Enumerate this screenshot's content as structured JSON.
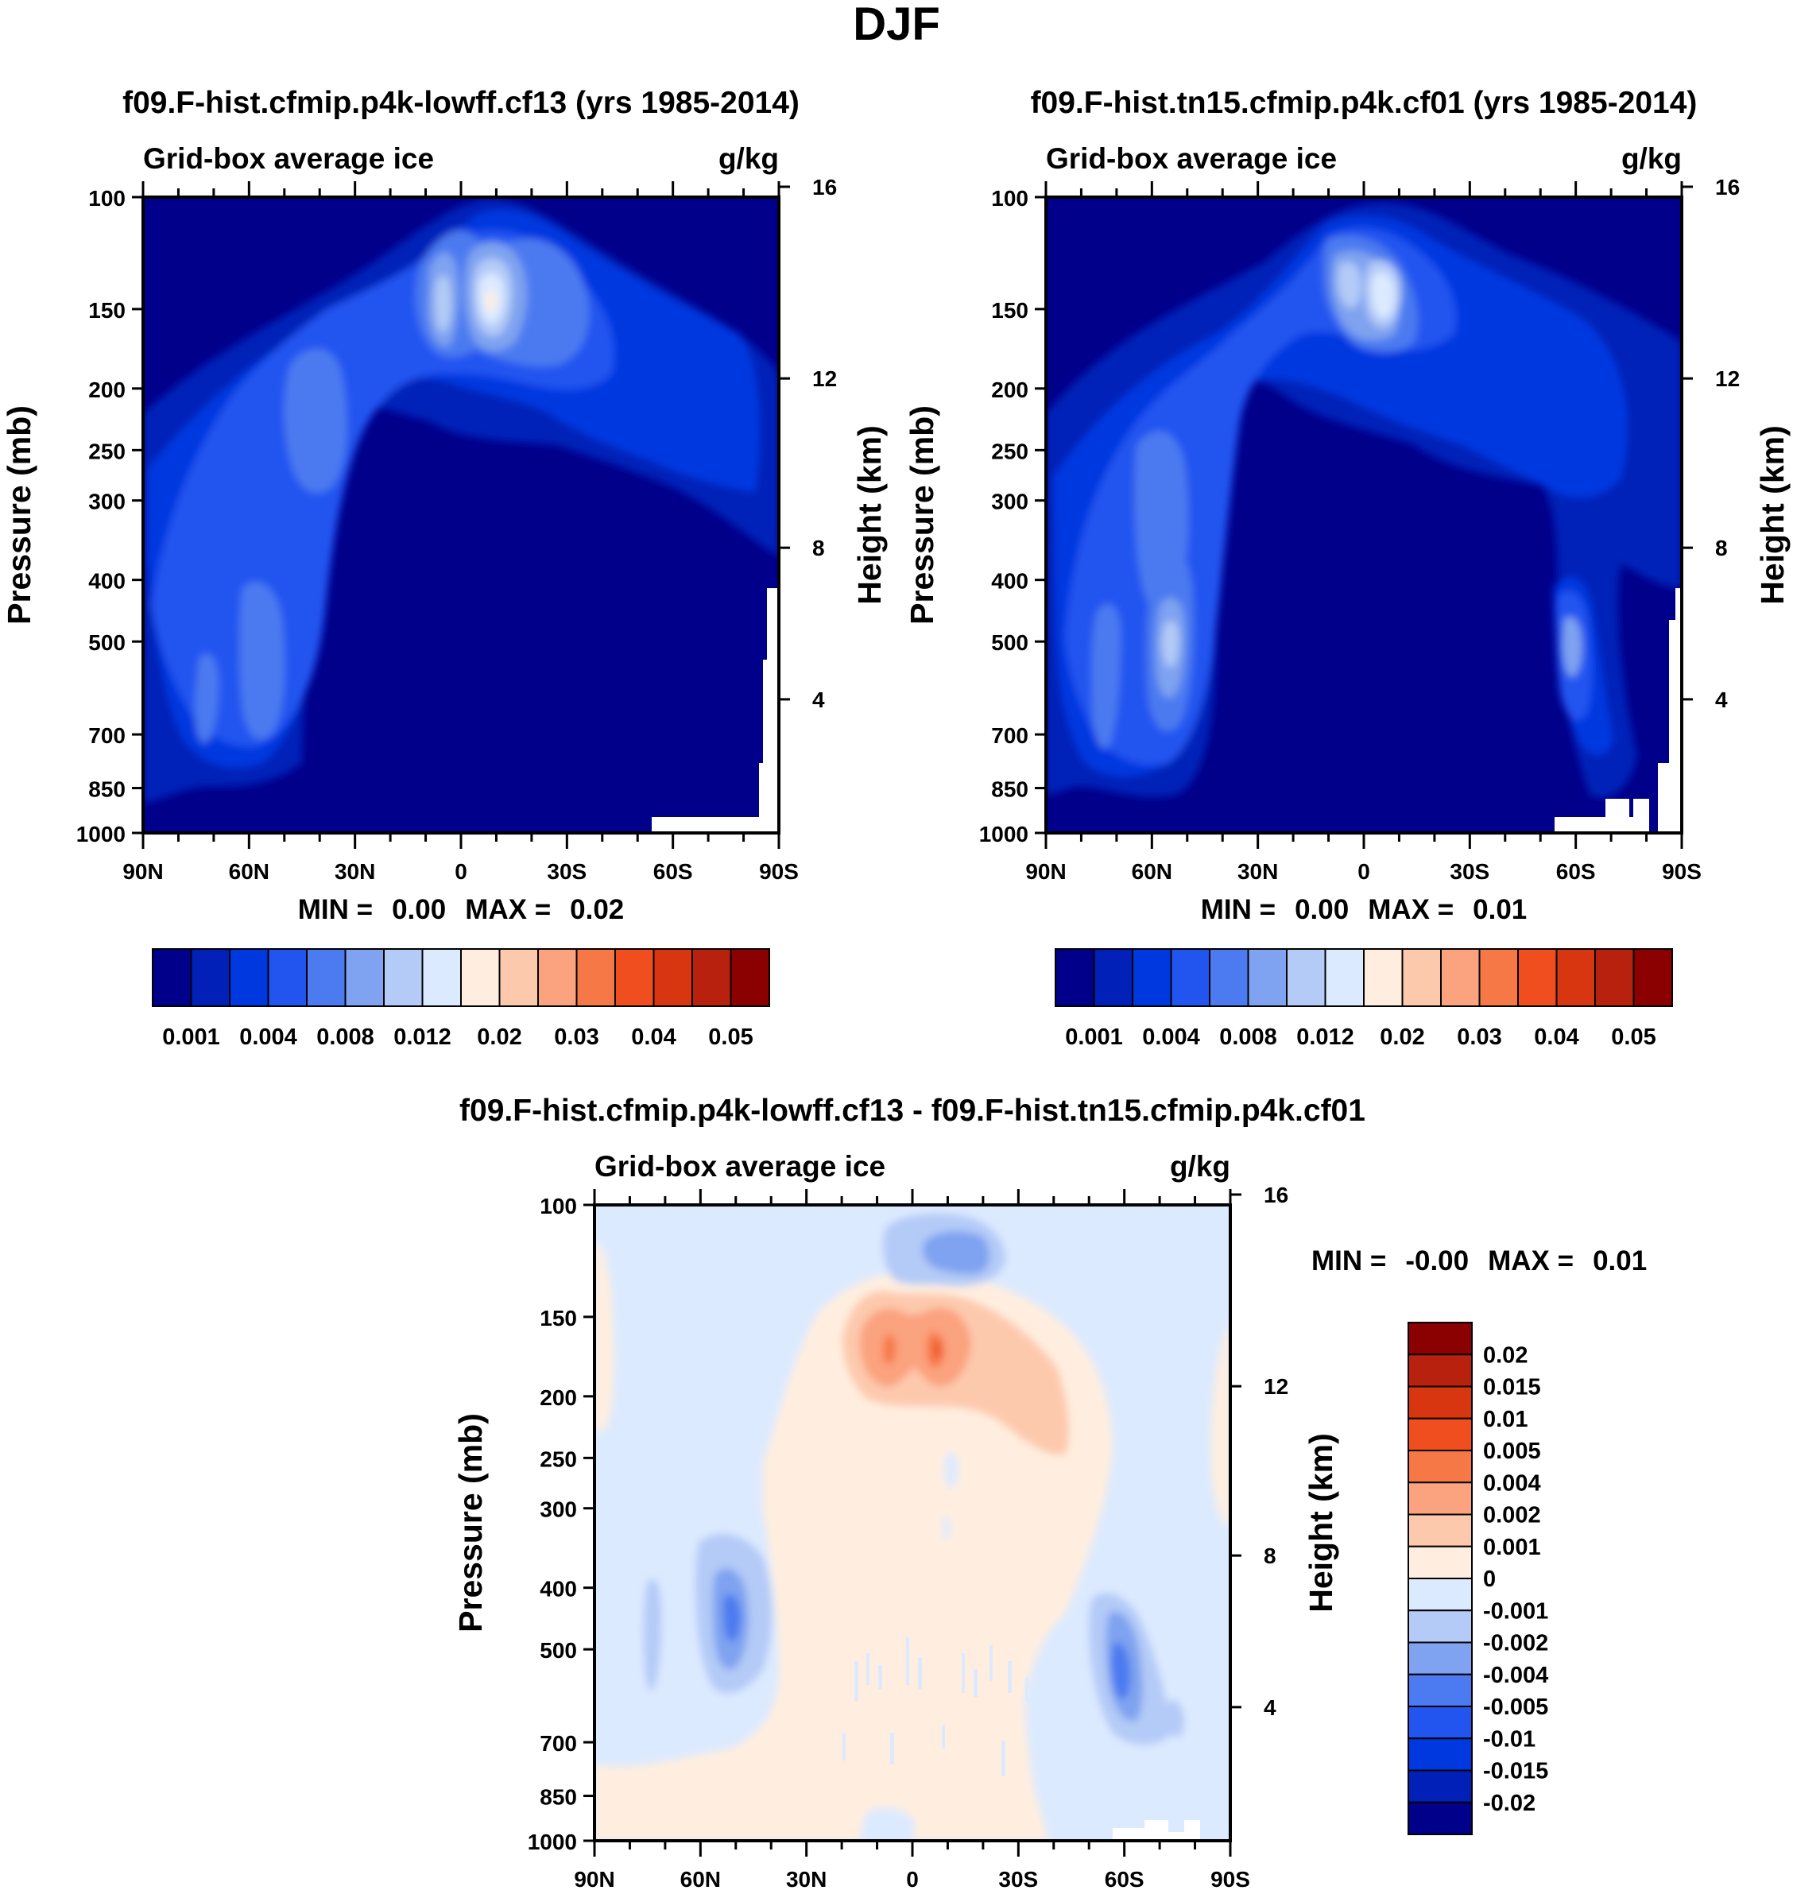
{
  "figure_title": "DJF",
  "colors": {
    "abs_scale": [
      "#00008B",
      "#0020B8",
      "#0038E0",
      "#2255F0",
      "#4C7AF0",
      "#7FA3F0",
      "#B4CBF7",
      "#DCEAFF",
      "#FFEEDF",
      "#FDC9AD",
      "#FBA27E",
      "#F67847",
      "#F04E1E",
      "#D83511",
      "#B8210E",
      "#8B0000"
    ],
    "diff_scale": [
      "#00008B",
      "#0020B8",
      "#0038E0",
      "#2255F0",
      "#4C7AF0",
      "#7FA3F0",
      "#B4CBF7",
      "#DCEAFF",
      "#FFEEDF",
      "#FDC9AD",
      "#FBA27E",
      "#F67847",
      "#F04E1E",
      "#D83511",
      "#B8210E",
      "#8B0000"
    ]
  },
  "chart_data": [
    {
      "type": "heatmap",
      "title": "f09.F-hist.cfmip.p4k-lowff.cf13 (yrs 1985-2014)",
      "left_label": "Grid-box average ice",
      "right_label": "g/kg",
      "ylabel": "Pressure (mb)",
      "y2label": "Height (km)",
      "xticks": [
        "90N",
        "60N",
        "30N",
        "0",
        "30S",
        "60S",
        "90S"
      ],
      "yticks": [
        100,
        150,
        200,
        250,
        300,
        400,
        500,
        700,
        850,
        1000
      ],
      "y2ticks": [
        16,
        12,
        8,
        4
      ],
      "min_label": "MIN =",
      "min_value": "0.00",
      "max_label": "MAX =",
      "max_value": "0.02",
      "colorbar_labels": [
        "0.001",
        "0.004",
        "0.008",
        "0.012",
        "0.02",
        "0.03",
        "0.04",
        "0.05"
      ]
    },
    {
      "type": "heatmap",
      "title": "f09.F-hist.tn15.cfmip.p4k.cf01 (yrs 1985-2014)",
      "left_label": "Grid-box average ice",
      "right_label": "g/kg",
      "ylabel": "Pressure (mb)",
      "y2label": "Height (km)",
      "xticks": [
        "90N",
        "60N",
        "30N",
        "0",
        "30S",
        "60S",
        "90S"
      ],
      "yticks": [
        100,
        150,
        200,
        250,
        300,
        400,
        500,
        700,
        850,
        1000
      ],
      "y2ticks": [
        16,
        12,
        8,
        4
      ],
      "min_label": "MIN =",
      "min_value": "0.00",
      "max_label": "MAX =",
      "max_value": "0.01",
      "colorbar_labels": [
        "0.001",
        "0.004",
        "0.008",
        "0.012",
        "0.02",
        "0.03",
        "0.04",
        "0.05"
      ]
    },
    {
      "type": "heatmap",
      "title": "f09.F-hist.cfmip.p4k-lowff.cf13 - f09.F-hist.tn15.cfmip.p4k.cf01",
      "left_label": "Grid-box average ice",
      "right_label": "g/kg",
      "ylabel": "Pressure (mb)",
      "y2label": "Height (km)",
      "xticks": [
        "90N",
        "60N",
        "30N",
        "0",
        "30S",
        "60S",
        "90S"
      ],
      "yticks": [
        100,
        150,
        200,
        250,
        300,
        400,
        500,
        700,
        850,
        1000
      ],
      "y2ticks": [
        16,
        12,
        8,
        4
      ],
      "min_label": "MIN =",
      "min_value": "-0.00",
      "max_label": "MAX =",
      "max_value": "0.01",
      "colorbar_labels": [
        "0.02",
        "0.015",
        "0.01",
        "0.005",
        "0.004",
        "0.002",
        "0.001",
        "0",
        "-0.001",
        "-0.002",
        "-0.004",
        "-0.005",
        "-0.01",
        "-0.015",
        "-0.02"
      ]
    }
  ]
}
